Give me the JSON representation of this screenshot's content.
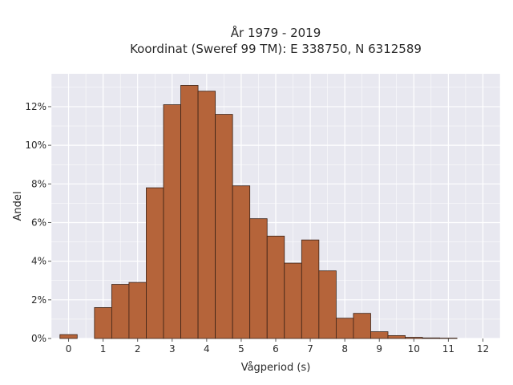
{
  "chart_data": {
    "type": "bar",
    "title": "År 1979 - 2019",
    "subtitle": "Koordinat (Sweref 99 TM): E 338750, N 6312589",
    "xlabel": "Vågperiod (s)",
    "ylabel": "Andel",
    "x_ticks": [
      "0",
      "1",
      "2",
      "3",
      "4",
      "5",
      "6",
      "7",
      "8",
      "9",
      "10",
      "11",
      "12"
    ],
    "y_ticks": [
      "0%",
      "2%",
      "4%",
      "6%",
      "8%",
      "10%",
      "12%"
    ],
    "xlim": [
      -0.5,
      12.5
    ],
    "ylim": [
      0,
      13.7
    ],
    "bin_width": 0.5,
    "bin_starts": [
      -0.25,
      0.25,
      0.75,
      1.25,
      1.75,
      2.25,
      2.75,
      3.25,
      3.75,
      4.25,
      4.75,
      5.25,
      5.75,
      6.25,
      6.75,
      7.25,
      7.75,
      8.25,
      8.75,
      9.25,
      9.75,
      10.25,
      10.75,
      11.25
    ],
    "values": [
      0.2,
      0.0,
      1.6,
      2.8,
      2.9,
      7.8,
      12.1,
      13.1,
      12.8,
      11.6,
      7.9,
      6.2,
      5.3,
      3.9,
      5.1,
      3.5,
      1.05,
      1.3,
      0.35,
      0.15,
      0.06,
      0.03,
      0.02,
      0.0
    ],
    "bar_color": "#b5643a",
    "bar_edge_color": "#3b2216",
    "plot_background": "#e8e8f0",
    "grid": true,
    "grid_color": "#ffffff"
  }
}
